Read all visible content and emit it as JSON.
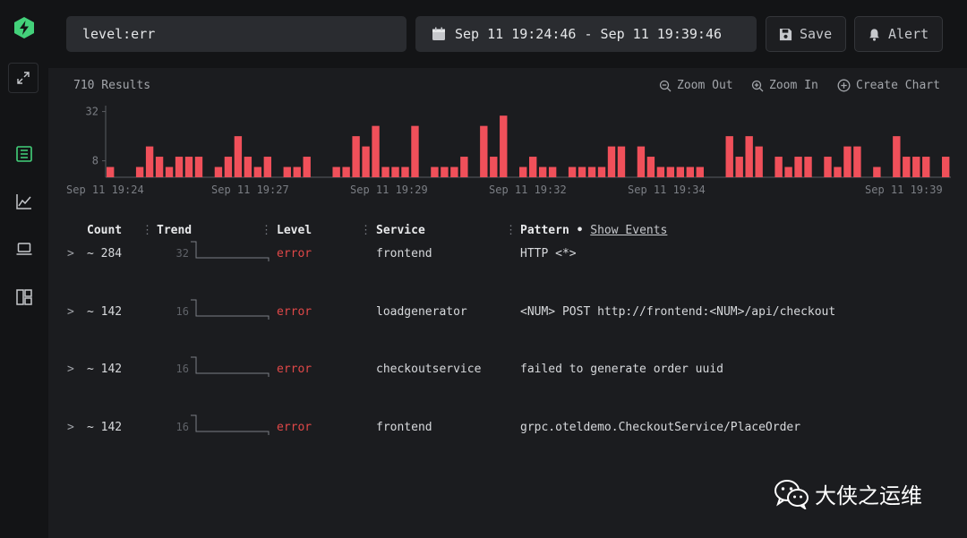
{
  "search": {
    "value": "level:err"
  },
  "date_range": {
    "label": "Sep 11 19:24:46 - Sep 11 19:39:46"
  },
  "toolbar": {
    "save_label": "Save",
    "alert_label": "Alert"
  },
  "results_count": "710 Results",
  "chart_actions": {
    "zoom_out": "Zoom Out",
    "zoom_in": "Zoom In",
    "create_chart": "Create Chart"
  },
  "chart_data": {
    "type": "bar",
    "color": "#f0505a",
    "y_ticks": [
      "32",
      "8"
    ],
    "ylim": [
      0,
      34
    ],
    "x_ticks": [
      "Sep 11 19:24",
      "Sep 11 19:27",
      "Sep 11 19:29",
      "Sep 11 19:32",
      "Sep 11 19:34",
      "Sep 11 19:39"
    ],
    "values": [
      5,
      0,
      0,
      5,
      15,
      10,
      5,
      10,
      10,
      10,
      0,
      5,
      10,
      20,
      10,
      5,
      10,
      0,
      5,
      5,
      10,
      0,
      0,
      5,
      5,
      20,
      15,
      25,
      5,
      5,
      5,
      25,
      0,
      5,
      5,
      5,
      10,
      0,
      25,
      10,
      30,
      0,
      5,
      10,
      5,
      5,
      0,
      5,
      5,
      5,
      5,
      15,
      15,
      0,
      15,
      10,
      5,
      5,
      5,
      5,
      5,
      0,
      0,
      20,
      10,
      20,
      15,
      0,
      10,
      5,
      10,
      10,
      0,
      10,
      5,
      15,
      15,
      0,
      5,
      0,
      20,
      10,
      10,
      10,
      0,
      10
    ]
  },
  "table": {
    "headers": {
      "count": "Count",
      "trend": "Trend",
      "level": "Level",
      "service": "Service",
      "pattern": "Pattern",
      "separator": "•",
      "show_events": "Show Events"
    },
    "rows": [
      {
        "expand": ">",
        "count": "~ 284",
        "trend_max": "32",
        "level": "error",
        "service": "frontend",
        "pattern": "HTTP <*>"
      },
      {
        "expand": ">",
        "count": "~ 142",
        "trend_max": "16",
        "level": "error",
        "service": "loadgenerator",
        "pattern": "<NUM> POST http://frontend:<NUM>/api/checkout"
      },
      {
        "expand": ">",
        "count": "~ 142",
        "trend_max": "16",
        "level": "error",
        "service": "checkoutservice",
        "pattern": "failed to generate order uuid"
      },
      {
        "expand": ">",
        "count": "~ 142",
        "trend_max": "16",
        "level": "error",
        "service": "frontend",
        "pattern": "grpc.oteldemo.CheckoutService/PlaceOrder"
      }
    ]
  },
  "watermark": {
    "text": "大侠之运维"
  },
  "icons": [
    "logo-bolt-icon",
    "expand-icon",
    "search-logs-icon",
    "chart-line-icon",
    "laptop-icon",
    "dashboard-icon",
    "calendar-icon",
    "save-icon",
    "bell-icon",
    "zoom-out-icon",
    "zoom-in-icon",
    "plus-circle-icon",
    "wechat-icon"
  ]
}
